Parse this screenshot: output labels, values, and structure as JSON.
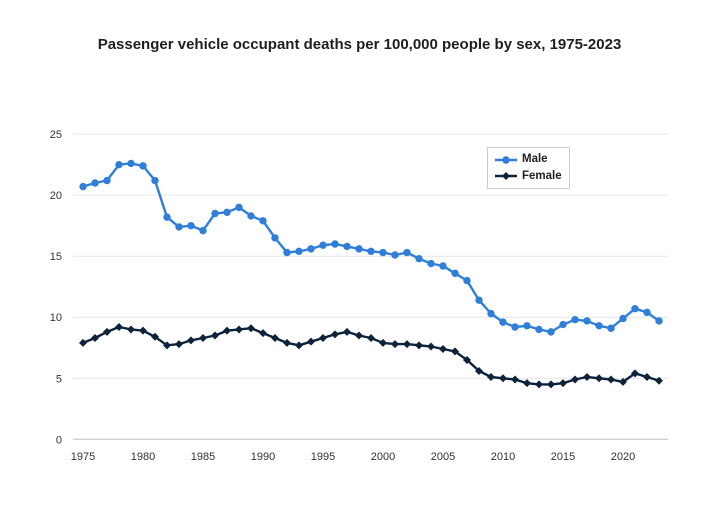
{
  "title": "Passenger vehicle occupant deaths per 100,000 people by sex, 1975-2023",
  "legend": {
    "items": [
      {
        "label": "Male",
        "marker": "circle-icon",
        "color": "#2f7ed8"
      },
      {
        "label": "Female",
        "marker": "diamond-icon",
        "color": "#0d233a"
      }
    ]
  },
  "colors": {
    "male": "#2f7ed8",
    "female": "#0d233a",
    "gridline": "#e6e6e6",
    "baseline": "#c0c0c0",
    "tick_label": "#333333"
  },
  "chart_data": {
    "type": "line",
    "title": "Passenger vehicle occupant deaths per 100,000 people by sex, 1975-2023",
    "xlabel": "",
    "ylabel": "",
    "ylim": [
      0,
      25
    ],
    "yticks": [
      0,
      5,
      10,
      15,
      20,
      25
    ],
    "xticks": [
      1975,
      1980,
      1985,
      1990,
      1995,
      2000,
      2005,
      2010,
      2015,
      2020
    ],
    "grid": "horizontal",
    "legend_position": "top-right",
    "x": [
      1975,
      1976,
      1977,
      1978,
      1979,
      1980,
      1981,
      1982,
      1983,
      1984,
      1985,
      1986,
      1987,
      1988,
      1989,
      1990,
      1991,
      1992,
      1993,
      1994,
      1995,
      1996,
      1997,
      1998,
      1999,
      2000,
      2001,
      2002,
      2003,
      2004,
      2005,
      2006,
      2007,
      2008,
      2009,
      2010,
      2011,
      2012,
      2013,
      2014,
      2015,
      2016,
      2017,
      2018,
      2019,
      2020,
      2021,
      2022,
      2023
    ],
    "series": [
      {
        "name": "Male",
        "color": "#2f7ed8",
        "marker": "circle",
        "values": [
          20.7,
          21.0,
          21.2,
          22.5,
          22.6,
          22.4,
          21.2,
          18.2,
          17.4,
          17.5,
          17.1,
          18.5,
          18.6,
          19.0,
          18.3,
          17.9,
          16.5,
          15.3,
          15.4,
          15.6,
          15.9,
          16.0,
          15.8,
          15.6,
          15.4,
          15.3,
          15.1,
          15.3,
          14.8,
          14.4,
          14.2,
          13.6,
          13.0,
          11.4,
          10.3,
          9.6,
          9.2,
          9.3,
          9.0,
          8.8,
          9.4,
          9.8,
          9.7,
          9.3,
          9.1,
          9.9,
          10.7,
          10.4,
          9.7
        ]
      },
      {
        "name": "Female",
        "color": "#0d233a",
        "marker": "diamond",
        "values": [
          7.9,
          8.3,
          8.8,
          9.2,
          9.0,
          8.9,
          8.4,
          7.7,
          7.8,
          8.1,
          8.3,
          8.5,
          8.9,
          9.0,
          9.1,
          8.7,
          8.3,
          7.9,
          7.7,
          8.0,
          8.3,
          8.6,
          8.8,
          8.5,
          8.3,
          7.9,
          7.8,
          7.8,
          7.7,
          7.6,
          7.4,
          7.2,
          6.5,
          5.6,
          5.1,
          5.0,
          4.9,
          4.6,
          4.5,
          4.5,
          4.6,
          4.9,
          5.1,
          5.0,
          4.9,
          4.7,
          5.4,
          5.1,
          4.8
        ]
      }
    ]
  }
}
